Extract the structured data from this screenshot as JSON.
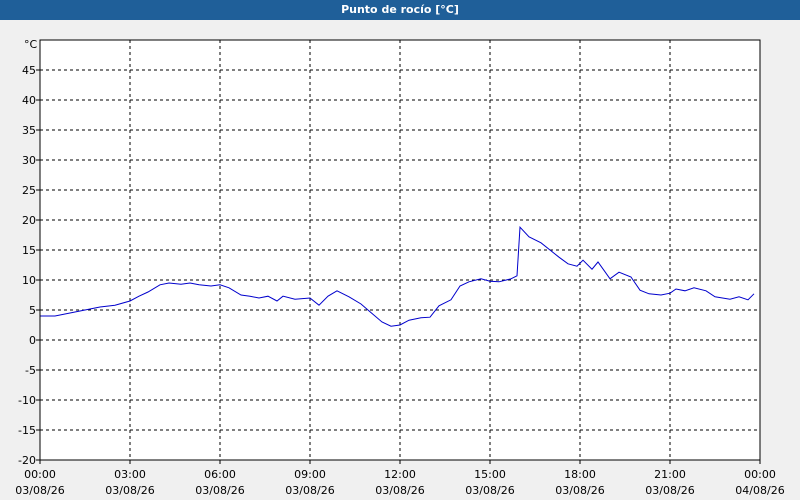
{
  "chart_data": {
    "type": "line",
    "title": "Punto de rocío [°C]",
    "y_unit": "°C",
    "x": [
      "00:00",
      "00:30",
      "01:00",
      "01:30",
      "02:00",
      "02:30",
      "03:00",
      "03:18",
      "03:36",
      "04:00",
      "04:18",
      "04:42",
      "05:00",
      "05:18",
      "05:42",
      "06:00",
      "06:18",
      "06:42",
      "07:00",
      "07:18",
      "07:36",
      "07:54",
      "08:06",
      "08:30",
      "09:00",
      "09:18",
      "09:36",
      "09:54",
      "10:18",
      "10:42",
      "11:00",
      "11:24",
      "11:42",
      "12:00",
      "12:18",
      "12:42",
      "13:00",
      "13:18",
      "13:42",
      "14:00",
      "14:18",
      "14:42",
      "15:00",
      "15:18",
      "15:42",
      "15:54",
      "16:00",
      "16:18",
      "16:42",
      "17:00",
      "17:18",
      "17:36",
      "17:54",
      "18:06",
      "18:24",
      "18:36",
      "19:00",
      "19:18",
      "19:42",
      "20:00",
      "20:18",
      "20:42",
      "21:00",
      "21:12",
      "21:30",
      "21:48",
      "22:12",
      "22:30",
      "23:00",
      "23:18",
      "23:36",
      "23:48"
    ],
    "series": [
      {
        "name": "Punto de rocío",
        "color": "#0000cc",
        "values": [
          4.0,
          4.0,
          4.5,
          5.0,
          5.5,
          5.8,
          6.5,
          7.3,
          8.0,
          9.2,
          9.5,
          9.3,
          9.5,
          9.2,
          9.0,
          9.2,
          8.7,
          7.5,
          7.3,
          7.0,
          7.3,
          6.5,
          7.3,
          6.8,
          7.0,
          5.8,
          7.3,
          8.2,
          7.2,
          6.0,
          4.7,
          3.0,
          2.3,
          2.5,
          3.3,
          3.7,
          3.8,
          5.7,
          6.7,
          9.0,
          9.7,
          10.2,
          9.8,
          9.7,
          10.2,
          10.7,
          18.8,
          17.2,
          16.2,
          15.0,
          13.8,
          12.7,
          12.3,
          13.3,
          11.8,
          13.0,
          10.2,
          11.3,
          10.5,
          8.3,
          7.7,
          7.5,
          7.8,
          8.5,
          8.2,
          8.7,
          8.2,
          7.2,
          6.8,
          7.2,
          6.7,
          7.7
        ]
      }
    ],
    "xlim": [
      0,
      24
    ],
    "xticks": [
      {
        "value": 0,
        "label": "00:00",
        "date": "03/08/26"
      },
      {
        "value": 3,
        "label": "03:00",
        "date": "03/08/26"
      },
      {
        "value": 6,
        "label": "06:00",
        "date": "03/08/26"
      },
      {
        "value": 9,
        "label": "09:00",
        "date": "03/08/26"
      },
      {
        "value": 12,
        "label": "12:00",
        "date": "03/08/26"
      },
      {
        "value": 15,
        "label": "15:00",
        "date": "03/08/26"
      },
      {
        "value": 18,
        "label": "18:00",
        "date": "03/08/26"
      },
      {
        "value": 21,
        "label": "21:00",
        "date": "03/08/26"
      },
      {
        "value": 24,
        "label": "00:00",
        "date": "04/08/26"
      }
    ],
    "ylim": [
      -20,
      50
    ],
    "yticks": [
      -20,
      -15,
      -10,
      -5,
      0,
      5,
      10,
      15,
      20,
      25,
      30,
      35,
      40,
      45
    ],
    "grid": true
  }
}
